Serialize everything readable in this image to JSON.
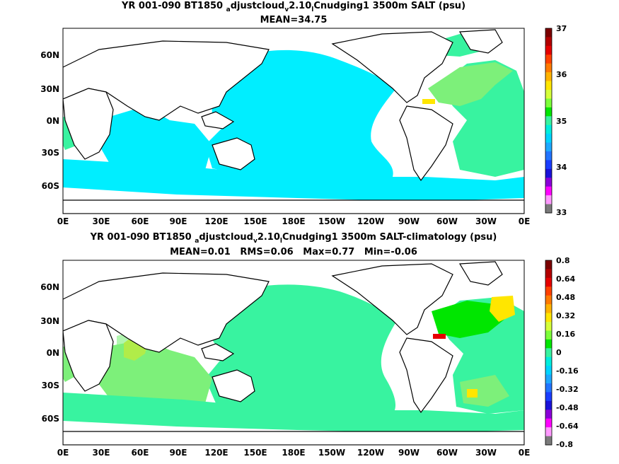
{
  "chart_data": [
    {
      "type": "heatmap",
      "title_line1": "YR 001-090 BT1850",
      "title_sub1": "a",
      "title_mid1": "djustcloud",
      "title_sub2": "v",
      "title_mid2": "2.10",
      "title_sub3": "l",
      "title_end": "Cnudging1 3500m SALT (psu)",
      "subtitle": "MEAN=34.75",
      "x_ticks": [
        "0E",
        "30E",
        "60E",
        "90E",
        "120E",
        "150E",
        "180E",
        "150W",
        "120W",
        "90W",
        "60W",
        "30W",
        "0E"
      ],
      "y_ticks": [
        "60N",
        "30N",
        "0N",
        "30S",
        "60S"
      ],
      "y_tick_values": [
        60,
        30,
        0,
        -30,
        -60
      ],
      "lat_range": [
        -80,
        85
      ],
      "lon_range": [
        0,
        360
      ],
      "colorbar_labels": [
        "37",
        "36",
        "35",
        "34",
        "33"
      ],
      "colorbar_values": [
        37,
        36,
        35,
        34,
        33
      ],
      "colorbar_colors": [
        "#7b0000",
        "#b30000",
        "#e60000",
        "#ff4000",
        "#ff7a00",
        "#ffb300",
        "#ffe600",
        "#d6ff3a",
        "#7dff3a",
        "#00e600",
        "#38f3a0",
        "#00eedd",
        "#00d4ff",
        "#1ea8ff",
        "#2274ff",
        "#1a3dff",
        "#1a12d9",
        "#8a00d9",
        "#ff00ff",
        "#ff99ff",
        "#7a7a7a"
      ],
      "value_range": [
        33,
        37
      ]
    },
    {
      "type": "heatmap",
      "title_line1": "YR 001-090 BT1850",
      "title_sub1": "a",
      "title_mid1": "djustcloud",
      "title_sub2": "v",
      "title_mid2": "2.10",
      "title_sub3": "l",
      "title_end": "Cnudging1 3500m SALT-climatology (psu)",
      "subtitle": "MEAN=0.01   RMS=0.06   Max=0.77   Min=-0.06",
      "x_ticks": [
        "0E",
        "30E",
        "60E",
        "90E",
        "120E",
        "150E",
        "180E",
        "150W",
        "120W",
        "90W",
        "60W",
        "30W",
        "0E"
      ],
      "y_ticks": [
        "60N",
        "30N",
        "0N",
        "30S",
        "60S"
      ],
      "y_tick_values": [
        60,
        30,
        0,
        -30,
        -60
      ],
      "lat_range": [
        -80,
        85
      ],
      "lon_range": [
        0,
        360
      ],
      "colorbar_labels": [
        "0.8",
        "0.64",
        "0.48",
        "0.32",
        "0.16",
        "0",
        "-0.16",
        "-0.32",
        "-0.48",
        "-0.64",
        "-0.8"
      ],
      "colorbar_values": [
        0.8,
        0.64,
        0.48,
        0.32,
        0.16,
        0,
        -0.16,
        -0.32,
        -0.48,
        -0.64,
        -0.8
      ],
      "colorbar_colors": [
        "#7b0000",
        "#b30000",
        "#e60000",
        "#ff4000",
        "#ff7a00",
        "#ffb300",
        "#ffe600",
        "#d6ff3a",
        "#7dff3a",
        "#00e600",
        "#38f3a0",
        "#00eedd",
        "#00d4ff",
        "#1ea8ff",
        "#2274ff",
        "#1a3dff",
        "#1a12d9",
        "#8a00d9",
        "#ff00ff",
        "#ff99ff",
        "#7a7a7a"
      ],
      "value_range": [
        -0.8,
        0.8
      ]
    }
  ],
  "colors": {
    "cyan": "#00eeff",
    "aqua_green": "#38f3a0",
    "light_green": "#7df07a",
    "green": "#2fe83a",
    "yellow": "#ffe600",
    "orange": "#ffa500",
    "red": "#e60000",
    "land": "#ffffff",
    "coast": "#000000"
  }
}
